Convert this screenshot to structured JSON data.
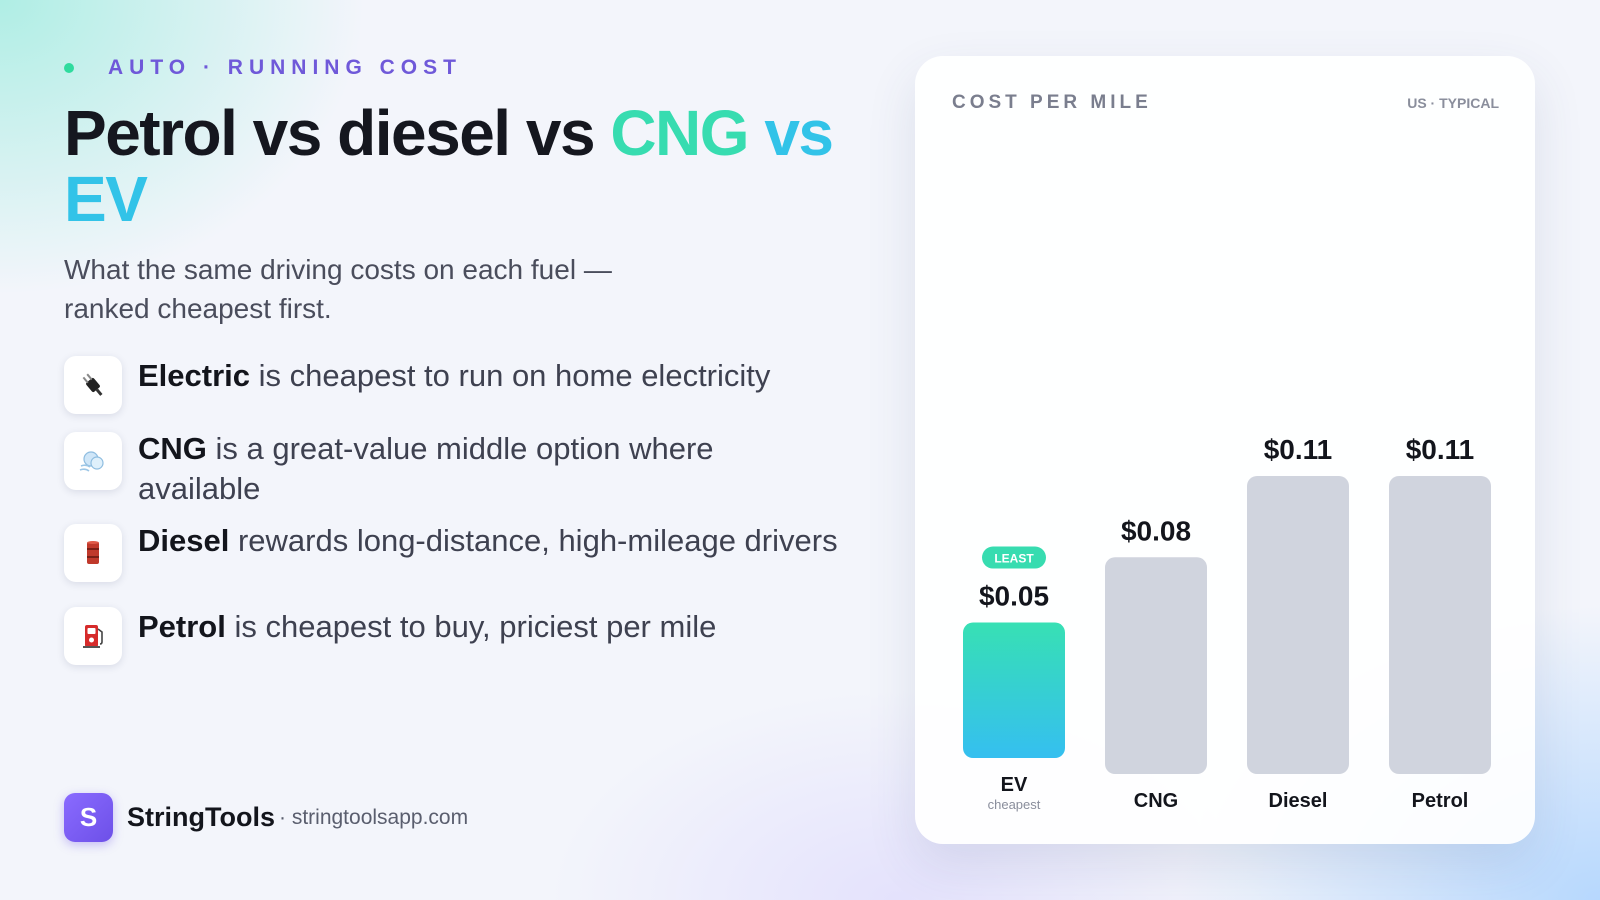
{
  "eyebrow": "AUTO · RUNNING COST",
  "title": {
    "part1": "Petrol vs diesel vs ",
    "part2": "CNG",
    "part3": " vs EV"
  },
  "subtitle": "What the same driving costs on each fuel — ranked cheapest first.",
  "points": [
    {
      "icon": "plug-icon",
      "bold": "Electric",
      "text": " is cheapest to run on home electricity"
    },
    {
      "icon": "wind-icon",
      "bold": "CNG",
      "text": " is a great-value middle option where available"
    },
    {
      "icon": "oil-drum-icon",
      "bold": "Diesel",
      "text": " rewards long-distance, high-mileage drivers"
    },
    {
      "icon": "fuel-pump-icon",
      "bold": "Petrol",
      "text": " is cheapest to buy, priciest per mile"
    }
  ],
  "brand": {
    "logo_letter": "S",
    "name": "StringTools",
    "url": "· stringtoolsapp.com"
  },
  "colors": {
    "accent_green": "#37dcb0",
    "accent_blue": "#32c3e8",
    "brand_purple": "#6f59d9",
    "bar_grey": "#d0d4de"
  },
  "chart_data": {
    "type": "bar",
    "title": "COST PER MILE",
    "note": "US · TYPICAL",
    "categories": [
      "EV",
      "CNG",
      "Diesel",
      "Petrol"
    ],
    "values": [
      0.05,
      0.08,
      0.11,
      0.11
    ],
    "value_labels": [
      "$0.05",
      "$0.08",
      "$0.11",
      "$0.11"
    ],
    "highlight_index": 0,
    "highlight_badge": "LEAST",
    "highlight_sublabel": "cheapest",
    "grid": false,
    "legend": false
  }
}
